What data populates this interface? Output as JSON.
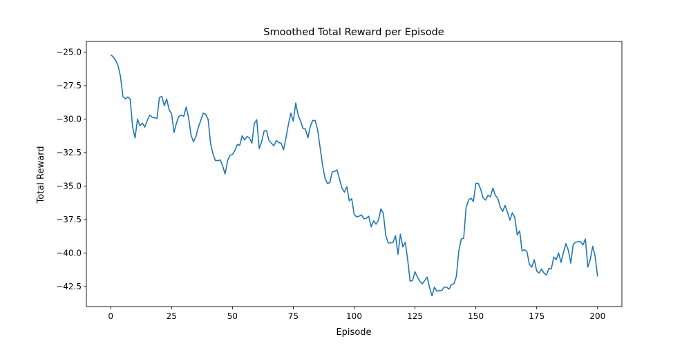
{
  "chart_data": {
    "type": "line",
    "title": "Smoothed Total Reward per Episode",
    "xlabel": "Episode",
    "ylabel": "Total Reward",
    "xlim": [
      -10,
      210
    ],
    "ylim": [
      -44,
      -24.2
    ],
    "xticks": [
      0,
      25,
      50,
      75,
      100,
      125,
      150,
      175,
      200
    ],
    "xtick_labels": [
      "0",
      "25",
      "50",
      "75",
      "100",
      "125",
      "150",
      "175",
      "200"
    ],
    "yticks": [
      -25.0,
      -27.5,
      -30.0,
      -32.5,
      -35.0,
      -37.5,
      -40.0,
      -42.5
    ],
    "ytick_labels": [
      "−25.0",
      "−27.5",
      "−30.0",
      "−32.5",
      "−35.0",
      "−37.5",
      "−40.0",
      "−42.5"
    ],
    "grid": false,
    "legend": "none",
    "series": [
      {
        "color": "#1f77b4",
        "x": [
          0,
          1,
          2,
          3,
          4,
          5,
          6,
          7,
          8,
          9,
          10,
          11,
          12,
          13,
          14,
          15,
          16,
          17,
          18,
          19,
          20,
          21,
          22,
          23,
          24,
          25,
          26,
          27,
          28,
          29,
          30,
          31,
          32,
          33,
          34,
          35,
          36,
          37,
          38,
          39,
          40,
          41,
          42,
          43,
          44,
          45,
          46,
          47,
          48,
          49,
          50,
          51,
          52,
          53,
          54,
          55,
          56,
          57,
          58,
          59,
          60,
          61,
          62,
          63,
          64,
          65,
          66,
          67,
          68,
          69,
          70,
          71,
          72,
          73,
          74,
          75,
          76,
          77,
          78,
          79,
          80,
          81,
          82,
          83,
          84,
          85,
          86,
          87,
          88,
          89,
          90,
          91,
          92,
          93,
          94,
          95,
          96,
          97,
          98,
          99,
          100,
          101,
          102,
          103,
          104,
          105,
          106,
          107,
          108,
          109,
          110,
          111,
          112,
          113,
          114,
          115,
          116,
          117,
          118,
          119,
          120,
          121,
          122,
          123,
          124,
          125,
          126,
          127,
          128,
          129,
          130,
          131,
          132,
          133,
          134,
          135,
          136,
          137,
          138,
          139,
          140,
          141,
          142,
          143,
          144,
          145,
          146,
          147,
          148,
          149,
          150,
          151,
          152,
          153,
          154,
          155,
          156,
          157,
          158,
          159,
          160,
          161,
          162,
          163,
          164,
          165,
          166,
          167,
          168,
          169,
          170,
          171,
          172,
          173,
          174,
          175,
          176,
          177,
          178,
          179,
          180,
          181,
          182,
          183,
          184,
          185,
          186,
          187,
          188,
          189,
          190,
          191,
          192,
          193,
          194,
          195,
          196,
          197,
          198,
          199,
          200
        ],
        "values": [
          -25.2,
          -25.35,
          -25.6,
          -26.0,
          -26.8,
          -28.3,
          -28.5,
          -28.35,
          -28.5,
          -30.6,
          -31.4,
          -30.0,
          -30.5,
          -30.3,
          -30.6,
          -30.1,
          -29.7,
          -29.85,
          -29.9,
          -29.95,
          -28.4,
          -28.3,
          -29.0,
          -28.5,
          -29.3,
          -29.6,
          -31.0,
          -30.3,
          -29.8,
          -29.7,
          -29.8,
          -29.1,
          -29.9,
          -31.2,
          -31.7,
          -31.3,
          -30.6,
          -30.1,
          -29.55,
          -29.65,
          -30.0,
          -31.8,
          -32.6,
          -33.1,
          -33.1,
          -33.05,
          -33.5,
          -34.1,
          -33.1,
          -32.7,
          -32.65,
          -32.35,
          -31.9,
          -31.95,
          -31.25,
          -31.55,
          -31.3,
          -31.4,
          -31.8,
          -30.3,
          -30.05,
          -32.2,
          -31.7,
          -30.9,
          -30.85,
          -31.6,
          -31.8,
          -32.0,
          -31.6,
          -31.75,
          -31.8,
          -32.3,
          -31.4,
          -30.4,
          -29.55,
          -30.15,
          -28.8,
          -29.7,
          -30.15,
          -30.7,
          -30.75,
          -31.4,
          -30.55,
          -30.1,
          -30.1,
          -30.8,
          -32.1,
          -33.4,
          -34.4,
          -34.8,
          -34.75,
          -33.95,
          -33.9,
          -33.8,
          -34.5,
          -35.15,
          -35.45,
          -35.05,
          -36.1,
          -35.95,
          -37.1,
          -37.3,
          -37.25,
          -37.15,
          -37.45,
          -37.4,
          -37.25,
          -38.05,
          -37.6,
          -37.85,
          -37.55,
          -36.7,
          -37.05,
          -38.7,
          -39.25,
          -39.25,
          -39.2,
          -38.7,
          -40.1,
          -38.6,
          -39.55,
          -39.2,
          -40.5,
          -42.1,
          -42.05,
          -41.4,
          -41.8,
          -42.1,
          -42.3,
          -42.05,
          -41.8,
          -42.6,
          -43.2,
          -42.55,
          -42.85,
          -42.8,
          -42.8,
          -42.55,
          -42.55,
          -42.7,
          -42.35,
          -42.3,
          -41.75,
          -39.85,
          -38.95,
          -38.9,
          -36.6,
          -36.05,
          -35.9,
          -36.15,
          -34.8,
          -34.8,
          -35.25,
          -35.9,
          -36.05,
          -35.7,
          -35.8,
          -35.15,
          -35.7,
          -35.9,
          -36.55,
          -36.9,
          -36.45,
          -36.95,
          -37.55,
          -37.0,
          -37.35,
          -38.65,
          -38.35,
          -39.85,
          -39.75,
          -39.9,
          -40.85,
          -41.05,
          -40.5,
          -41.35,
          -41.5,
          -41.2,
          -41.5,
          -41.65,
          -41.15,
          -41.2,
          -40.3,
          -40.5,
          -40.0,
          -40.7,
          -39.95,
          -39.3,
          -39.8,
          -40.75,
          -39.35,
          -39.2,
          -39.15,
          -39.15,
          -39.4,
          -38.95,
          -41.05,
          -40.5,
          -39.5,
          -40.25,
          -41.75
        ]
      }
    ]
  }
}
